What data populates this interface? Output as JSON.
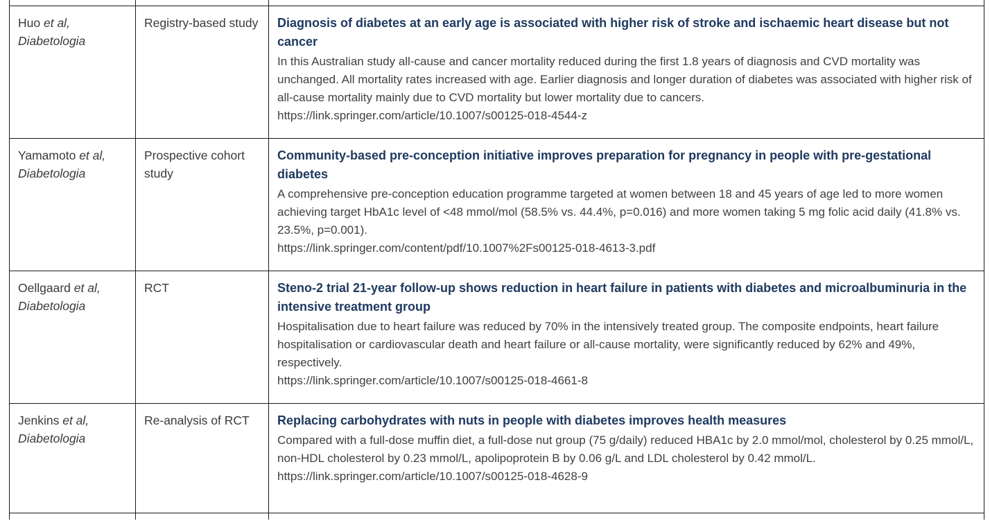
{
  "colors": {
    "heading": "#1f3a60",
    "body_text": "#404040",
    "border": "#1a1a1a"
  },
  "table": {
    "rows": [
      {
        "author_name": "Huo",
        "author_etal": "et al,",
        "journal": "Diabetologia",
        "study_type": "Registry-based study",
        "title": "Diagnosis of diabetes at an early age is associated with higher risk of stroke and ischaemic heart disease but not cancer",
        "summary": "In this Australian study all-cause and cancer mortality reduced during the first 1.8 years of diagnosis and CVD mortality was unchanged. All mortality rates increased with age. Earlier diagnosis and longer duration of diabetes was associated with higher risk of all-cause mortality mainly due to CVD mortality but lower mortality due to cancers.",
        "link": "https://link.springer.com/article/10.1007/s00125-018-4544-z"
      },
      {
        "author_name": "Yamamoto",
        "author_etal": "et al,",
        "journal": "Diabetologia",
        "study_type": "Prospective cohort study",
        "title": "Community-based pre-conception initiative improves preparation for pregnancy in people with pre-gestational diabetes",
        "summary": "A comprehensive pre-conception education programme targeted at women between 18 and 45 years of age led to more women achieving target HbA1c level of <48 mmol/mol (58.5% vs. 44.4%, p=0.016) and more women taking 5 mg folic acid daily (41.8% vs. 23.5%, p=0.001).",
        "link": "https://link.springer.com/content/pdf/10.1007%2Fs00125-018-4613-3.pdf"
      },
      {
        "author_name": "Oellgaard",
        "author_etal": "et al,",
        "journal": "Diabetologia",
        "study_type": "RCT",
        "title": "Steno-2 trial 21-year follow-up shows reduction in heart failure in patients with diabetes and microalbuminuria in the intensive treatment group",
        "summary": "Hospitalisation due to heart failure was reduced by 70% in the intensively treated group. The composite endpoints, heart failure hospitalisation or cardiovascular death and heart failure or all-cause mortality, were significantly reduced by 62% and 49%, respectively.",
        "link": "https://link.springer.com/article/10.1007/s00125-018-4661-8"
      },
      {
        "author_name": "Jenkins",
        "author_etal": "et al,",
        "journal": "Diabetologia",
        "study_type": "Re-analysis of RCT",
        "title": "Replacing carbohydrates with nuts in people with diabetes improves health measures",
        "summary": "Compared with a full-dose muffin diet, a full-dose nut group (75 g/daily) reduced HBA1c by 2.0 mmol/mol, cholesterol by 0.25 mmol/L, non-HDL cholesterol by 0.23 mmol/L, apolipoprotein B by 0.06 g/L and LDL cholesterol by 0.42 mmol/L.",
        "link": "https://link.springer.com/article/10.1007/s00125-018-4628-9"
      }
    ]
  }
}
